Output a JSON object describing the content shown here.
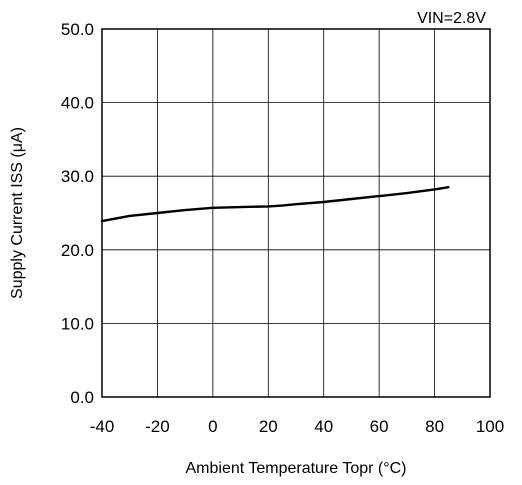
{
  "chart_data": {
    "type": "line",
    "xlabel": "Ambient Temperature Topr (°C)",
    "ylabel": "Supply Current ISS (μA)",
    "annotation": "VIN=2.8V",
    "xlim": [
      -40,
      100
    ],
    "ylim": [
      0,
      50
    ],
    "x_ticks": [
      "-40",
      "-20",
      "0",
      "20",
      "40",
      "60",
      "80",
      "100"
    ],
    "y_ticks": [
      "0.0",
      "10.0",
      "20.0",
      "30.0",
      "40.0",
      "50.0"
    ],
    "x_grid_step": 20,
    "y_grid_step": 10,
    "grid": true,
    "series": [
      {
        "color": "#000000",
        "x": [
          -40,
          -30,
          -20,
          -10,
          0,
          10,
          20,
          25,
          30,
          40,
          50,
          60,
          70,
          80,
          85
        ],
        "y": [
          23.9,
          24.6,
          25.0,
          25.4,
          25.7,
          25.8,
          25.9,
          26.0,
          26.2,
          26.5,
          26.9,
          27.3,
          27.7,
          28.2,
          28.5
        ]
      }
    ]
  }
}
